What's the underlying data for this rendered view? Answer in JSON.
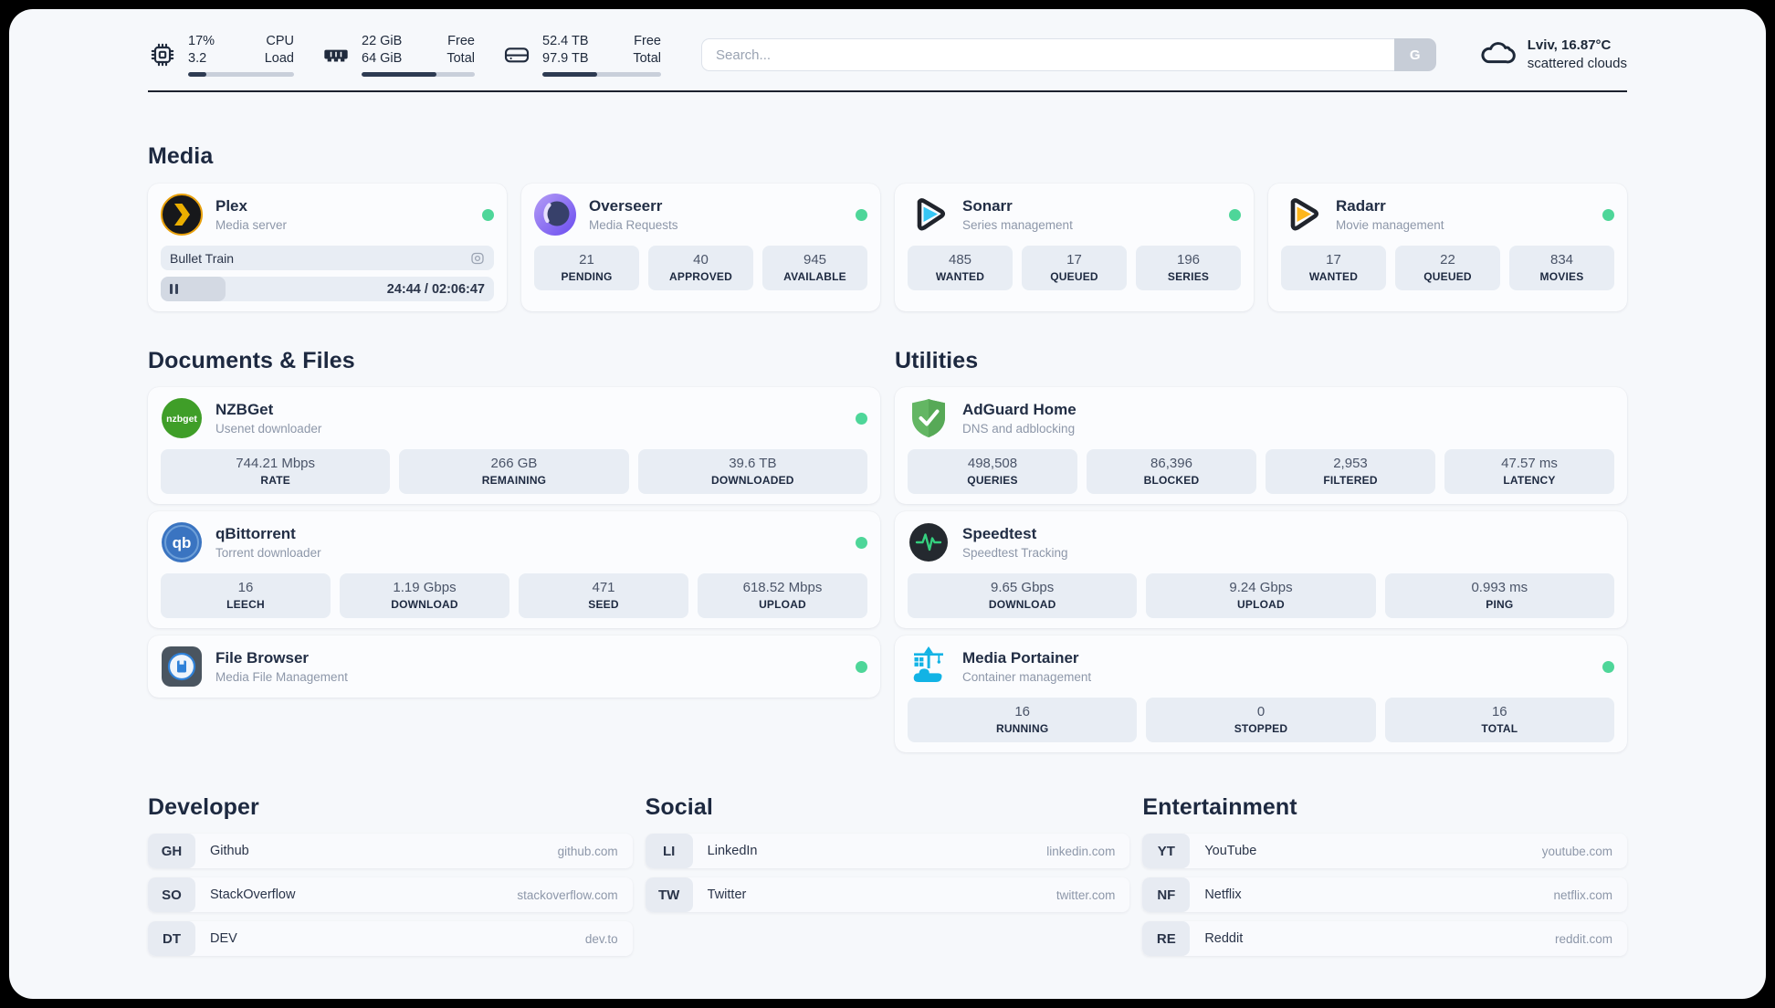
{
  "topbar": {
    "cpu": {
      "icon": "cpu-chip-icon",
      "value_top": "17%",
      "value_bottom": "3.2",
      "label_top": "CPU",
      "label_bottom": "Load",
      "progress_pct": 17
    },
    "memory": {
      "icon": "ram-icon",
      "value_top": "22 GiB",
      "value_bottom": "64 GiB",
      "label_top": "Free",
      "label_bottom": "Total",
      "progress_pct": 66
    },
    "disk": {
      "icon": "hard-drive-icon",
      "value_top": "52.4 TB",
      "value_bottom": "97.9 TB",
      "label_top": "Free",
      "label_bottom": "Total",
      "progress_pct": 46
    },
    "search": {
      "placeholder": "Search...",
      "button_label": "G"
    },
    "weather": {
      "icon": "cloud-icon",
      "line1": "Lviv, 16.87°C",
      "line2": "scattered clouds"
    }
  },
  "sections": {
    "media": {
      "title": "Media",
      "apps": [
        {
          "name": "Plex",
          "desc": "Media server",
          "online": true,
          "player": {
            "title": "Bullet Train",
            "time": "24:44 / 02:06:47",
            "progress_pct": 19.5
          }
        },
        {
          "name": "Overseerr",
          "desc": "Media Requests",
          "online": true,
          "stats": [
            {
              "value": "21",
              "label": "PENDING"
            },
            {
              "value": "40",
              "label": "APPROVED"
            },
            {
              "value": "945",
              "label": "AVAILABLE"
            }
          ]
        },
        {
          "name": "Sonarr",
          "desc": "Series management",
          "online": true,
          "stats": [
            {
              "value": "485",
              "label": "WANTED"
            },
            {
              "value": "17",
              "label": "QUEUED"
            },
            {
              "value": "196",
              "label": "SERIES"
            }
          ]
        },
        {
          "name": "Radarr",
          "desc": "Movie management",
          "online": true,
          "stats": [
            {
              "value": "17",
              "label": "WANTED"
            },
            {
              "value": "22",
              "label": "QUEUED"
            },
            {
              "value": "834",
              "label": "MOVIES"
            }
          ]
        }
      ]
    },
    "documents": {
      "title": "Documents & Files",
      "apps": [
        {
          "name": "NZBGet",
          "desc": "Usenet downloader",
          "online": true,
          "stats": [
            {
              "value": "744.21 Mbps",
              "label": "RATE"
            },
            {
              "value": "266 GB",
              "label": "REMAINING"
            },
            {
              "value": "39.6 TB",
              "label": "DOWNLOADED"
            }
          ]
        },
        {
          "name": "qBittorrent",
          "desc": "Torrent downloader",
          "online": true,
          "stats": [
            {
              "value": "16",
              "label": "LEECH"
            },
            {
              "value": "1.19 Gbps",
              "label": "DOWNLOAD"
            },
            {
              "value": "471",
              "label": "SEED"
            },
            {
              "value": "618.52 Mbps",
              "label": "UPLOAD"
            }
          ]
        },
        {
          "name": "File Browser",
          "desc": "Media File Management",
          "online": true
        }
      ]
    },
    "utilities": {
      "title": "Utilities",
      "apps": [
        {
          "name": "AdGuard Home",
          "desc": "DNS and adblocking",
          "stats": [
            {
              "value": "498,508",
              "label": "QUERIES"
            },
            {
              "value": "86,396",
              "label": "BLOCKED"
            },
            {
              "value": "2,953",
              "label": "FILTERED"
            },
            {
              "value": "47.57 ms",
              "label": "LATENCY"
            }
          ]
        },
        {
          "name": "Speedtest",
          "desc": "Speedtest Tracking",
          "stats": [
            {
              "value": "9.65 Gbps",
              "label": "DOWNLOAD"
            },
            {
              "value": "9.24 Gbps",
              "label": "UPLOAD"
            },
            {
              "value": "0.993 ms",
              "label": "PING"
            }
          ]
        },
        {
          "name": "Media Portainer",
          "desc": "Container management",
          "online": true,
          "stats": [
            {
              "value": "16",
              "label": "RUNNING"
            },
            {
              "value": "0",
              "label": "STOPPED"
            },
            {
              "value": "16",
              "label": "TOTAL"
            }
          ]
        }
      ]
    },
    "developer": {
      "title": "Developer",
      "links": [
        {
          "abbr": "GH",
          "name": "Github",
          "url": "github.com"
        },
        {
          "abbr": "SO",
          "name": "StackOverflow",
          "url": "stackoverflow.com"
        },
        {
          "abbr": "DT",
          "name": "DEV",
          "url": "dev.to"
        }
      ]
    },
    "social": {
      "title": "Social",
      "links": [
        {
          "abbr": "LI",
          "name": "LinkedIn",
          "url": "linkedin.com"
        },
        {
          "abbr": "TW",
          "name": "Twitter",
          "url": "twitter.com"
        }
      ]
    },
    "entertainment": {
      "title": "Entertainment",
      "links": [
        {
          "abbr": "YT",
          "name": "YouTube",
          "url": "youtube.com"
        },
        {
          "abbr": "NF",
          "name": "Netflix",
          "url": "netflix.com"
        },
        {
          "abbr": "RE",
          "name": "Reddit",
          "url": "reddit.com"
        }
      ]
    }
  },
  "colors": {
    "status_online": "#4ed699",
    "accent_dark": "#1e2a3a",
    "plex_orange": "#ebaf00",
    "sonarr_cyan": "#36c6f4",
    "radarr_yellow": "#fdb61d",
    "nzbget_green": "#3f9e28",
    "qbittorrent_blue": "#3a74c1",
    "adguard_green": "#63b663",
    "speedtest_pulse": "#35d07f",
    "portainer_blue": "#12b3e5"
  }
}
